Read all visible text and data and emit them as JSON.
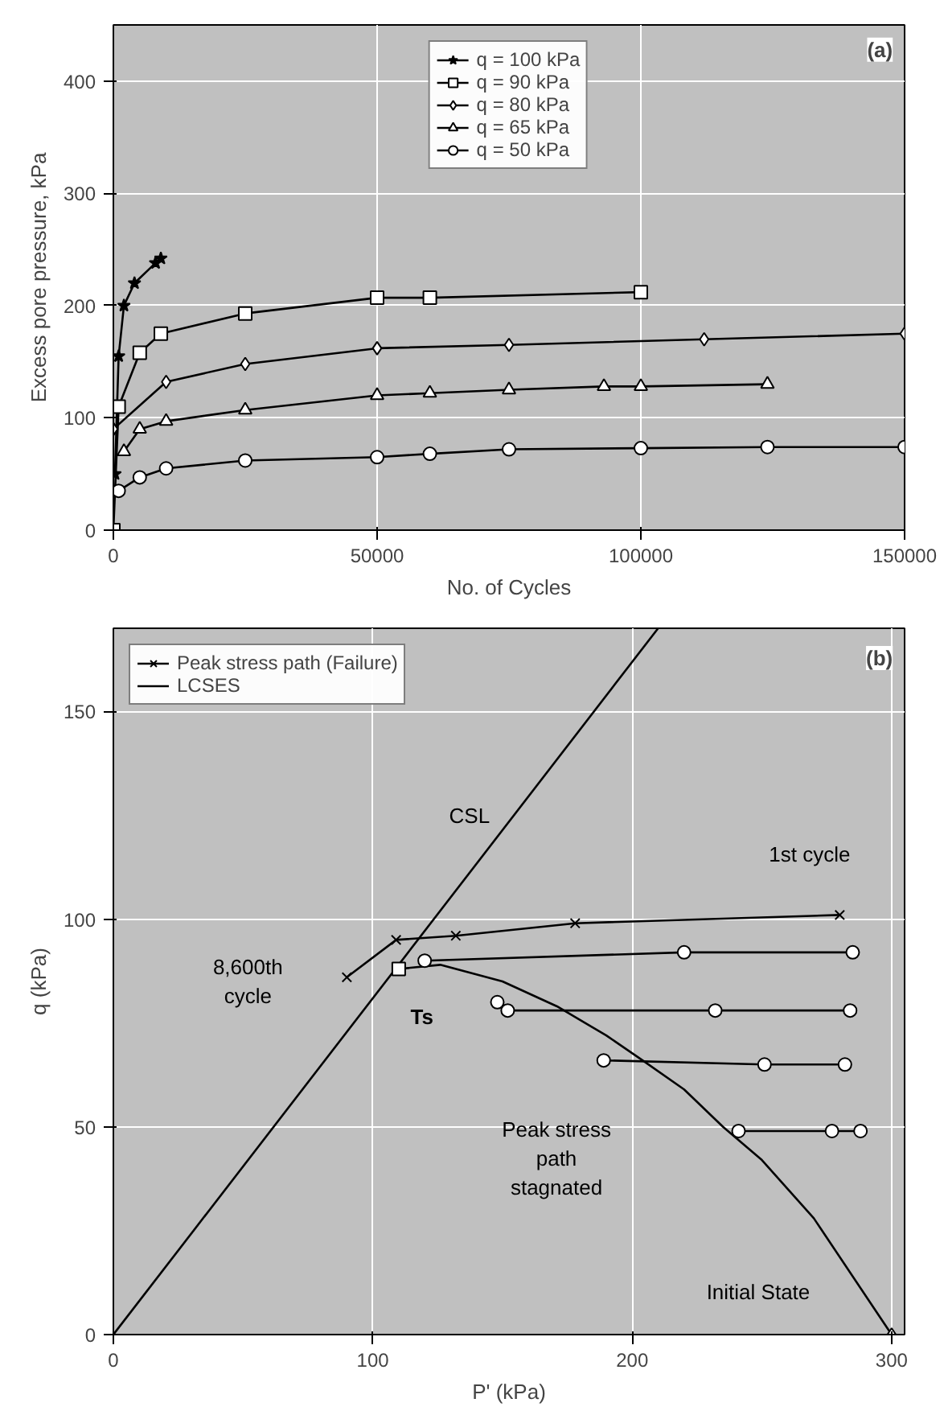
{
  "chart_data": [
    {
      "type": "line",
      "xlabel": "No. of Cycles",
      "ylabel": "Excess pore pressure, kPa",
      "xlim": [
        0,
        150000
      ],
      "ylim": [
        0,
        450
      ],
      "xticks": [
        0,
        50000,
        100000,
        150000
      ],
      "yticks": [
        0,
        100,
        200,
        300,
        400
      ],
      "grid": true,
      "legend": "top",
      "annotations": [
        "(a)"
      ],
      "series": [
        {
          "name": "q = 100 kPa",
          "color": "#000000",
          "marker": "star",
          "x": [
            300,
            1000,
            2000,
            4000,
            8000,
            9000
          ],
          "values": [
            50,
            155,
            200,
            220,
            238,
            242
          ]
        },
        {
          "name": "q = 90 kPa",
          "color": "#000000",
          "marker": "square",
          "x": [
            0,
            1000,
            5000,
            9000,
            25000,
            50000,
            60000,
            100000
          ],
          "values": [
            0,
            110,
            158,
            175,
            193,
            207,
            207,
            212
          ]
        },
        {
          "name": "q = 80 kPa",
          "color": "#000000",
          "marker": "diamond",
          "x": [
            0,
            10000,
            25000,
            50000,
            75000,
            112000,
            150000
          ],
          "values": [
            90,
            132,
            148,
            162,
            165,
            170,
            175
          ]
        },
        {
          "name": "q = 65 kPa",
          "color": "#000000",
          "marker": "triangle",
          "x": [
            2000,
            5000,
            10000,
            25000,
            50000,
            60000,
            75000,
            93000,
            100000,
            124000
          ],
          "values": [
            70,
            90,
            97,
            107,
            120,
            122,
            125,
            128,
            128,
            130
          ]
        },
        {
          "name": "q = 50 kPa",
          "color": "#000000",
          "marker": "circle",
          "x": [
            1000,
            5000,
            10000,
            25000,
            50000,
            60000,
            75000,
            100000,
            124000,
            150000
          ],
          "values": [
            35,
            47,
            55,
            62,
            65,
            68,
            72,
            73,
            74,
            74
          ]
        }
      ]
    },
    {
      "type": "line",
      "xlabel": "P' (kPa)",
      "ylabel": "q (kPa)",
      "xlim": [
        0,
        305
      ],
      "ylim": [
        0,
        170
      ],
      "xticks": [
        0,
        100,
        200,
        300
      ],
      "yticks": [
        0,
        50,
        100,
        150
      ],
      "grid": true,
      "legend": "top left",
      "annotations": [
        "(b)",
        "CSL",
        "1st cycle",
        "8,600th\ncycle",
        "Ts",
        "Peak stress\npath\nstagnated",
        "Initial State"
      ],
      "series": [
        {
          "name": "Peak stress path (Failure)",
          "color": "#000000",
          "marker": "cross",
          "x": [
            280,
            178,
            132,
            109,
            90
          ],
          "values": [
            101,
            99,
            96,
            95,
            86
          ]
        },
        {
          "name": "LCSES",
          "color": "#000000",
          "marker": "none",
          "x": [
            300,
            270,
            250,
            235,
            220,
            204,
            190,
            171,
            150,
            126,
            110
          ],
          "values": [
            0,
            28,
            42,
            50,
            59,
            66,
            72,
            79,
            85,
            89,
            88
          ]
        },
        {
          "color": "#000000",
          "marker": "none",
          "x": [
            0,
            210
          ],
          "values": [
            0,
            170
          ]
        },
        {
          "color": "#000000",
          "marker": "circle",
          "x": [
            285,
            220,
            120
          ],
          "values": [
            92,
            92,
            90
          ]
        },
        {
          "color": "#000000",
          "marker": "circle",
          "x": [
            284,
            232,
            152,
            148
          ],
          "values": [
            78,
            78,
            78,
            80
          ]
        },
        {
          "color": "#000000",
          "marker": "circle",
          "x": [
            282,
            251,
            189
          ],
          "values": [
            65,
            65,
            66
          ]
        },
        {
          "color": "#000000",
          "marker": "circle",
          "x": [
            288,
            277,
            241
          ],
          "values": [
            49,
            49,
            49
          ]
        },
        {
          "type": "scatter",
          "color": "#000000",
          "marker": "square",
          "x": [
            110
          ],
          "values": [
            88
          ]
        },
        {
          "type": "scatter",
          "color": "#000000",
          "marker": "diamond",
          "x": [
            300
          ],
          "values": [
            0
          ]
        }
      ]
    }
  ]
}
